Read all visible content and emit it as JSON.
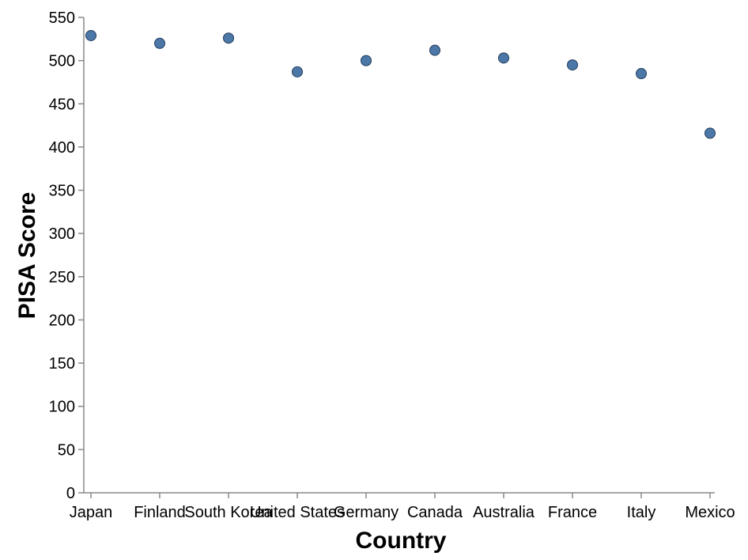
{
  "chart_data": {
    "type": "scatter",
    "categories": [
      "Japan",
      "Finland",
      "South Korea",
      "United States",
      "Germany",
      "Canada",
      "Australia",
      "France",
      "Italy",
      "Mexico"
    ],
    "values": [
      529,
      520,
      526,
      487,
      500,
      512,
      503,
      495,
      485,
      416
    ],
    "xlabel": "Country",
    "ylabel": "PISA Score",
    "ylim": [
      0,
      550
    ],
    "yticks": [
      0,
      50,
      100,
      150,
      200,
      250,
      300,
      350,
      400,
      450,
      500,
      550
    ],
    "grid": false,
    "point_color": "#4c78a8",
    "point_stroke": "#1f3a5a"
  }
}
